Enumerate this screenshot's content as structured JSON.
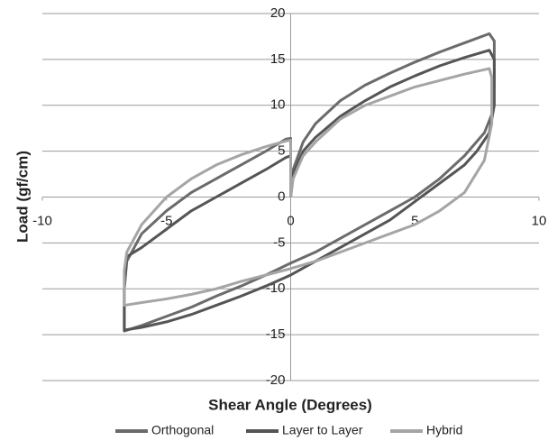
{
  "chart_data": {
    "type": "line",
    "x_label": "Shear Angle (Degrees)",
    "y_label": "Load (gf/cm)",
    "xlim": [
      -10,
      10
    ],
    "xticks": [
      -10,
      -5,
      0,
      5,
      10
    ],
    "ylim": [
      -20,
      20
    ],
    "yticks": [
      -20,
      -15,
      -10,
      -5,
      0,
      5,
      10,
      15,
      20
    ],
    "grid": true,
    "legend": "bottom",
    "series": [
      {
        "name": "Orthogonal",
        "color": "#6b6b6b",
        "x": [
          0,
          0.1,
          0.5,
          1,
          2,
          3,
          4,
          5,
          6,
          7,
          8,
          8.2,
          8.2,
          8.1,
          7.8,
          7,
          6,
          5,
          4,
          3,
          2,
          1,
          0,
          -1,
          -2,
          -3,
          -4,
          -5,
          -6,
          -6.7,
          -6.7,
          -6.6,
          -6,
          -5,
          -4,
          -3,
          -2,
          -1,
          -0.2,
          0,
          0
        ],
        "values": [
          0,
          3,
          6,
          8,
          10.5,
          12.2,
          13.5,
          14.7,
          15.8,
          16.8,
          17.8,
          17,
          12,
          9,
          7,
          4.5,
          2,
          0,
          -1.5,
          -3,
          -4.5,
          -6,
          -7.2,
          -8.5,
          -9.7,
          -10.8,
          -12,
          -13,
          -14,
          -14.6,
          -10,
          -7,
          -4,
          -1.5,
          0.5,
          2,
          3.5,
          5,
          6.3,
          6.4,
          0
        ]
      },
      {
        "name": "Layer to Layer",
        "color": "#555555",
        "x": [
          0,
          0.1,
          0.5,
          1,
          2,
          3,
          4,
          5,
          6,
          7,
          8,
          8.2,
          8.2,
          8,
          7.5,
          7,
          6,
          5,
          4,
          3,
          2,
          1,
          0,
          -1,
          -2,
          -3,
          -4,
          -5,
          -6,
          -6.7,
          -6.7,
          -6.6,
          -6,
          -5,
          -4,
          -3,
          -2,
          -1,
          -0.2,
          0,
          0
        ],
        "values": [
          0,
          2.5,
          5,
          6.5,
          8.8,
          10.5,
          12,
          13.2,
          14.3,
          15.2,
          16,
          15,
          10,
          7,
          5,
          3.5,
          1.5,
          -0.5,
          -2.5,
          -4,
          -5.5,
          -7,
          -8.5,
          -9.7,
          -10.8,
          -11.8,
          -12.8,
          -13.6,
          -14.2,
          -14.5,
          -10,
          -6.5,
          -5.5,
          -3.5,
          -1.5,
          0,
          1.5,
          3,
          4.3,
          4.5,
          0
        ]
      },
      {
        "name": "Hybrid",
        "color": "#a5a5a5",
        "x": [
          0,
          0.1,
          0.5,
          1,
          2,
          3,
          4,
          5,
          6,
          7,
          8,
          8.1,
          8.1,
          7.8,
          7,
          6,
          5,
          4,
          3,
          2,
          1,
          0,
          -1,
          -2,
          -3,
          -4,
          -5,
          -6,
          -6.7,
          -6.7,
          -6.6,
          -6,
          -5,
          -4,
          -3,
          -2,
          -1,
          -0.2,
          0,
          0
        ],
        "values": [
          0,
          2,
          4.5,
          6,
          8.5,
          10,
          11,
          12,
          12.7,
          13.4,
          14,
          13,
          8,
          4,
          0.5,
          -1.5,
          -3,
          -4,
          -5,
          -6,
          -7,
          -7.8,
          -8.5,
          -9.2,
          -10,
          -10.6,
          -11.1,
          -11.5,
          -11.8,
          -8,
          -6,
          -3,
          0,
          2,
          3.5,
          4.6,
          5.5,
          6.1,
          6.2,
          0
        ]
      }
    ]
  }
}
